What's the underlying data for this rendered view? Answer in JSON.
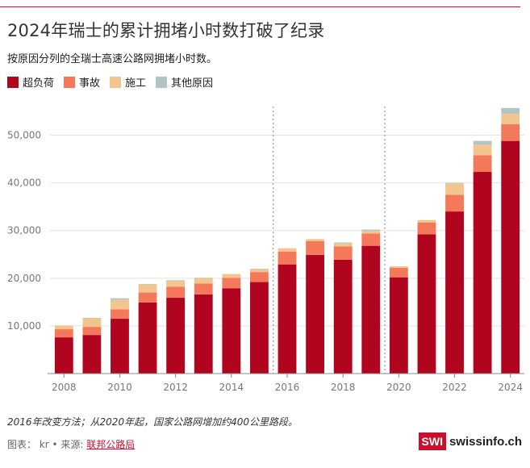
{
  "header": {
    "title": "2024年瑞士的累计拥堵小时数打破了纪录",
    "subtitle": "按原因分列的全瑞士高速公路网拥堵小时数。"
  },
  "legend": [
    {
      "label": "超负荷",
      "color": "#b0041f"
    },
    {
      "label": "事故",
      "color": "#f4795b"
    },
    {
      "label": "施工",
      "color": "#f2c48e"
    },
    {
      "label": "其他原因",
      "color": "#b3c4c6"
    }
  ],
  "footer": {
    "note": "2016年改变方法；从2020年起，国家公路网增加约400公里路段。",
    "source_prefix": "图表：  kr • 来源: ",
    "source_link": "联邦公路局",
    "brand_box": "SWI",
    "brand_name": "swissinfo.ch"
  },
  "chart_data": {
    "type": "bar",
    "stacked": true,
    "categories": [
      "2008",
      "2009",
      "2010",
      "2011",
      "2012",
      "2013",
      "2014",
      "2015",
      "2016",
      "2017",
      "2018",
      "2019",
      "2020",
      "2021",
      "2022",
      "2023",
      "2024"
    ],
    "series": [
      {
        "name": "超负荷",
        "color": "#b0041f",
        "values": [
          7600,
          8100,
          11500,
          14900,
          15900,
          16600,
          17900,
          19200,
          22900,
          24900,
          23900,
          26800,
          20200,
          29200,
          34000,
          42300,
          48800
        ]
      },
      {
        "name": "事故",
        "color": "#f4795b",
        "values": [
          1700,
          1700,
          2000,
          2100,
          2300,
          2300,
          2200,
          2100,
          2700,
          2900,
          2800,
          2600,
          2000,
          2500,
          3500,
          3500,
          3500
        ]
      },
      {
        "name": "施工",
        "color": "#f2c48e",
        "values": [
          800,
          1800,
          2000,
          1700,
          1300,
          1100,
          800,
          600,
          700,
          400,
          600,
          500,
          300,
          500,
          2400,
          2200,
          2200
        ]
      },
      {
        "name": "其他原因",
        "color": "#b3c4c6",
        "values": [
          0,
          100,
          300,
          100,
          100,
          100,
          0,
          100,
          0,
          0,
          200,
          300,
          0,
          0,
          100,
          800,
          1200
        ]
      }
    ],
    "ylim": [
      0,
      55000
    ],
    "yticks": [
      10000,
      20000,
      30000,
      40000,
      50000
    ],
    "ytick_labels": [
      "10,000",
      "20,000",
      "30,000",
      "40,000",
      "50,000"
    ],
    "xtick_labels": [
      "2008",
      "2010",
      "2012",
      "2014",
      "2016",
      "2018",
      "2020",
      "2022",
      "2024"
    ],
    "annotations": {
      "dotted_lines_between": [
        [
          "2015",
          "2016"
        ],
        [
          "2019",
          "2020"
        ]
      ]
    },
    "xlabel": "",
    "ylabel": ""
  }
}
